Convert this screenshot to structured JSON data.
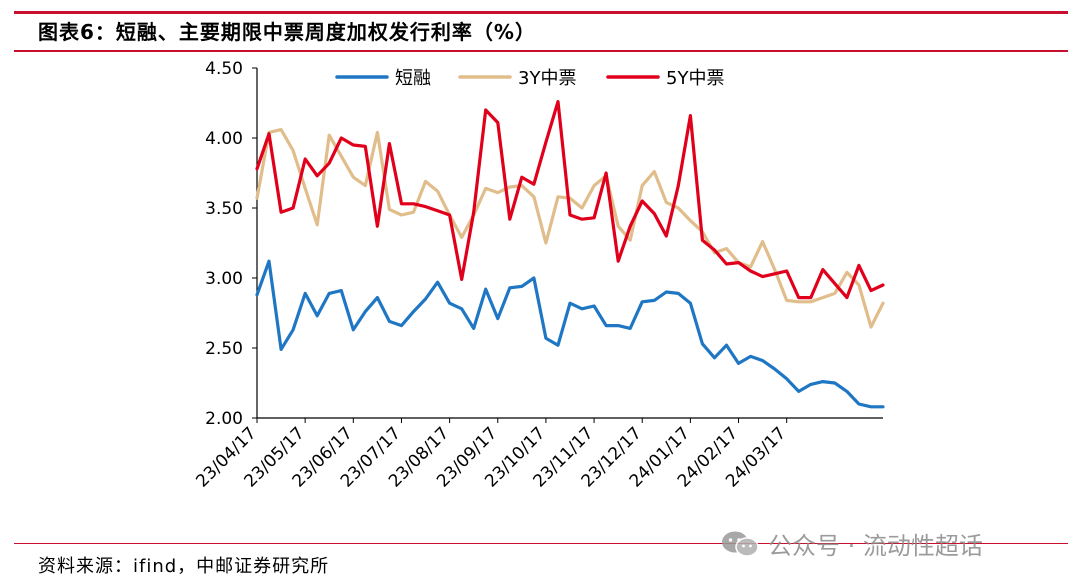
{
  "header": {
    "title": "图表6：短融、主要期限中票周度加权发行利率（%）"
  },
  "footer": {
    "source": "资料来源：ifind，中邮证券研究所",
    "watermark": "公众号 · 流动性超话"
  },
  "colors": {
    "accent": "#c8102e",
    "series_short": "#1f77c4",
    "series_3y": "#e0bd8a",
    "series_5y": "#e0001b"
  },
  "chart_data": {
    "type": "line",
    "title": "",
    "xlabel": "",
    "ylabel": "",
    "ylim": [
      2.0,
      4.5
    ],
    "y_ticks": [
      "4.50",
      "4.00",
      "3.50",
      "3.00",
      "2.50",
      "2.00"
    ],
    "x_tick_labels": [
      "23/04/17",
      "23/05/17",
      "23/06/17",
      "23/07/17",
      "23/08/17",
      "23/09/17",
      "23/10/17",
      "23/11/17",
      "23/12/17",
      "24/01/17",
      "24/02/17",
      "24/03/17"
    ],
    "x_tick_indices": [
      0,
      4,
      8,
      12,
      16,
      20,
      24,
      28,
      32,
      36,
      40,
      44
    ],
    "legend_position": "top",
    "series": [
      {
        "name": "短融",
        "color": "#1f77c4",
        "values": [
          2.88,
          3.12,
          2.49,
          2.63,
          2.89,
          2.73,
          2.89,
          2.91,
          2.63,
          2.76,
          2.86,
          2.69,
          2.66,
          2.76,
          2.85,
          2.97,
          2.82,
          2.78,
          2.64,
          2.92,
          2.71,
          2.93,
          2.94,
          3.0,
          2.57,
          2.52,
          2.82,
          2.78,
          2.8,
          2.66,
          2.66,
          2.64,
          2.83,
          2.84,
          2.9,
          2.89,
          2.82,
          2.53,
          2.43,
          2.52,
          2.39,
          2.44,
          2.41,
          2.35,
          2.28,
          2.19,
          2.24,
          2.26,
          2.25,
          2.19,
          2.1,
          2.08,
          2.08
        ]
      },
      {
        "name": "3Y中票",
        "color": "#e0bd8a",
        "values": [
          3.57,
          4.04,
          4.06,
          3.91,
          3.64,
          3.38,
          4.02,
          3.87,
          3.72,
          3.66,
          4.04,
          3.49,
          3.45,
          3.47,
          3.69,
          3.62,
          3.45,
          3.29,
          3.45,
          3.64,
          3.61,
          3.65,
          3.66,
          3.58,
          3.25,
          3.58,
          3.57,
          3.5,
          3.66,
          3.73,
          3.37,
          3.27,
          3.66,
          3.76,
          3.54,
          3.5,
          3.41,
          3.33,
          3.18,
          3.21,
          3.11,
          3.08,
          3.26,
          3.06,
          2.84,
          2.83,
          2.83,
          2.86,
          2.89,
          3.04,
          2.95,
          2.65,
          2.82
        ]
      },
      {
        "name": "5Y中票",
        "color": "#e0001b",
        "values": [
          3.78,
          4.03,
          3.47,
          3.5,
          3.85,
          3.73,
          3.82,
          4.0,
          3.95,
          3.94,
          3.37,
          3.96,
          3.53,
          3.53,
          3.51,
          3.48,
          3.45,
          2.99,
          3.47,
          4.2,
          4.11,
          3.42,
          3.72,
          3.67,
          3.97,
          4.26,
          3.45,
          3.42,
          3.43,
          3.75,
          3.12,
          3.37,
          3.55,
          3.46,
          3.3,
          3.66,
          4.16,
          3.27,
          3.2,
          3.1,
          3.11,
          3.05,
          3.01,
          3.03,
          3.05,
          2.86,
          2.86,
          3.06,
          2.96,
          2.86,
          3.09,
          2.91,
          2.95
        ]
      }
    ]
  }
}
